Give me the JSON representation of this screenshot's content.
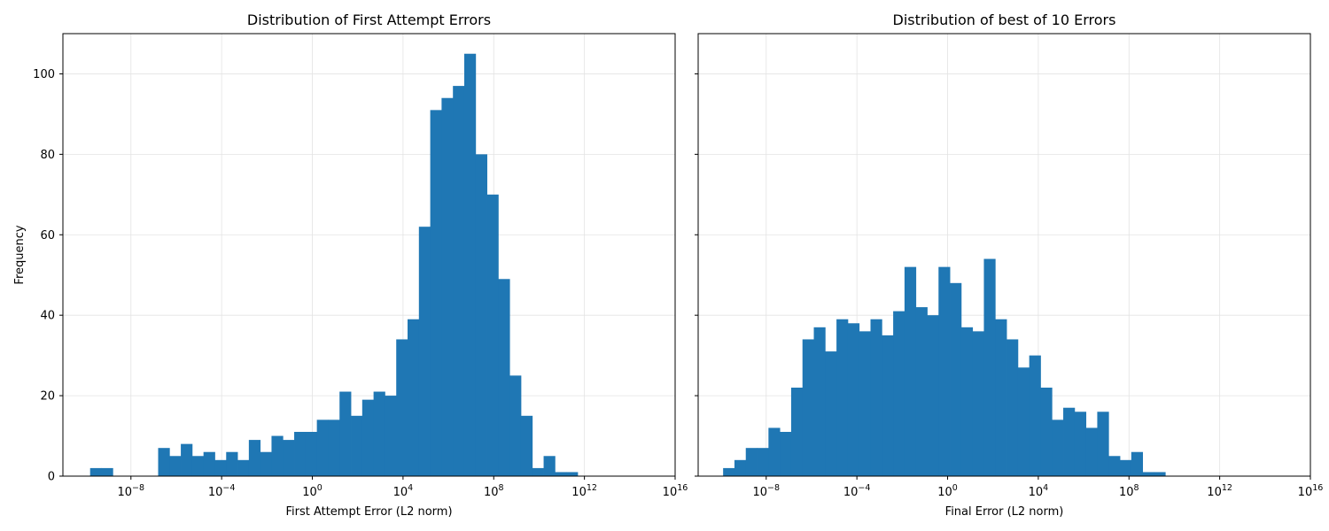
{
  "chart_data": [
    {
      "type": "bar",
      "title": "Distribution of First Attempt Errors",
      "xlabel": "First Attempt Error (L2 norm)",
      "ylabel": "Frequency",
      "xscale": "log",
      "xlim_log10": [
        -11,
        16
      ],
      "ylim": [
        0,
        110
      ],
      "xticks": [
        {
          "log10": -8,
          "label": "10^-8"
        },
        {
          "log10": -4,
          "label": "10^-4"
        },
        {
          "log10": 0,
          "label": "10^0"
        },
        {
          "log10": 4,
          "label": "10^4"
        },
        {
          "log10": 8,
          "label": "10^8"
        },
        {
          "log10": 12,
          "label": "10^12"
        },
        {
          "log10": 16,
          "label": "10^16"
        }
      ],
      "yticks": [
        0,
        20,
        40,
        60,
        80,
        100
      ],
      "grid": true,
      "color": "#1f77b4",
      "bin_edges_log10": [
        -9.8,
        -9.3,
        -8.8,
        -8.3,
        -7.8,
        -7.3,
        -6.8,
        -6.3,
        -5.8,
        -5.3,
        -4.8,
        -4.3,
        -3.8,
        -3.3,
        -2.8,
        -2.3,
        -1.8,
        -1.3,
        -0.8,
        -0.3,
        0.2,
        0.7,
        1.2,
        1.7,
        2.2,
        2.7,
        3.2,
        3.7,
        4.2,
        4.7,
        5.2,
        5.7,
        6.2,
        6.7,
        7.2,
        7.7,
        8.2,
        8.7,
        9.2,
        9.7,
        10.2,
        10.7,
        11.2,
        11.7,
        12.2
      ],
      "values": [
        2,
        2,
        0,
        0,
        0,
        0,
        7,
        5,
        8,
        5,
        6,
        4,
        6,
        4,
        9,
        6,
        10,
        9,
        11,
        11,
        14,
        14,
        21,
        15,
        19,
        21,
        20,
        34,
        39,
        62,
        91,
        94,
        97,
        105,
        80,
        70,
        49,
        25,
        15,
        2,
        5,
        1,
        1,
        0
      ]
    },
    {
      "type": "bar",
      "title": "Distribution of best of 10 Errors",
      "xlabel": "Final Error (L2 norm)",
      "ylabel": "",
      "xscale": "log",
      "xlim_log10": [
        -11,
        16
      ],
      "ylim": [
        0,
        110
      ],
      "xticks": [
        {
          "log10": -8,
          "label": "10^-8"
        },
        {
          "log10": -4,
          "label": "10^-4"
        },
        {
          "log10": 0,
          "label": "10^0"
        },
        {
          "log10": 4,
          "label": "10^4"
        },
        {
          "log10": 8,
          "label": "10^8"
        },
        {
          "log10": 12,
          "label": "10^12"
        },
        {
          "log10": 16,
          "label": "10^16"
        }
      ],
      "yticks": [
        0,
        20,
        40,
        60,
        80,
        100
      ],
      "grid": true,
      "color": "#1f77b4",
      "bin_edges_log10": [
        -9.9,
        -9.4,
        -8.9,
        -8.4,
        -7.9,
        -7.4,
        -6.9,
        -6.4,
        -5.9,
        -5.4,
        -4.9,
        -4.4,
        -3.9,
        -3.4,
        -2.9,
        -2.4,
        -1.9,
        -1.4,
        -0.9,
        -0.4,
        0.1,
        0.6,
        1.1,
        1.6,
        2.1,
        2.6,
        3.1,
        3.6,
        4.1,
        4.6,
        5.1,
        5.6,
        6.1,
        6.6,
        7.1,
        7.6,
        8.1,
        8.6,
        9.1,
        9.6,
        10.1
      ],
      "values": [
        2,
        4,
        7,
        7,
        12,
        11,
        22,
        34,
        37,
        31,
        39,
        38,
        36,
        39,
        35,
        41,
        52,
        42,
        40,
        52,
        48,
        37,
        36,
        54,
        39,
        34,
        27,
        30,
        22,
        14,
        17,
        16,
        12,
        16,
        5,
        4,
        6,
        1,
        1,
        0
      ]
    }
  ]
}
